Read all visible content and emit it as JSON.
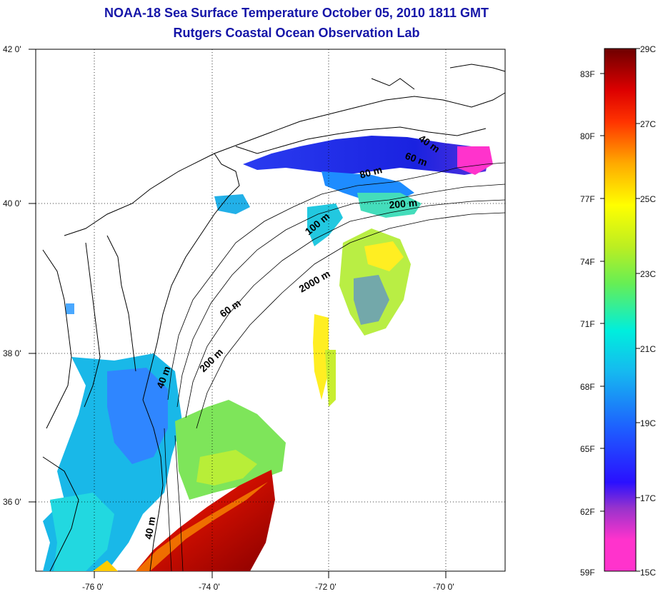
{
  "title": "NOAA-18 Sea Surface Temperature October 05, 2010 1811 GMT",
  "subtitle": "Rutgers Coastal Ocean Observation Lab",
  "map": {
    "lon_labels": [
      "-76 0'",
      "-74 0'",
      "-72 0'",
      "-70 0'"
    ],
    "lat_labels": [
      "42 0'",
      "40 0'",
      "38 0'",
      "36 0'"
    ],
    "contour_labels": [
      "40 m",
      "60 m",
      "80 m",
      "200 m",
      "100 m",
      "2000 m",
      "60 m",
      "200 m",
      "40 m",
      "40 m"
    ]
  },
  "colorbar": {
    "fahrenheit": [
      "83F",
      "80F",
      "77F",
      "74F",
      "71F",
      "68F",
      "65F",
      "62F",
      "59F"
    ],
    "celsius": [
      "29C",
      "27C",
      "25C",
      "23C",
      "21C",
      "19C",
      "17C",
      "15C"
    ],
    "colors": [
      "#ff33cc",
      "#aa33cc",
      "#1a00ff",
      "#1e7cff",
      "#00e8ee",
      "#55ee66",
      "#ffff00",
      "#ff8800",
      "#ff1a00",
      "#7a0000"
    ]
  }
}
